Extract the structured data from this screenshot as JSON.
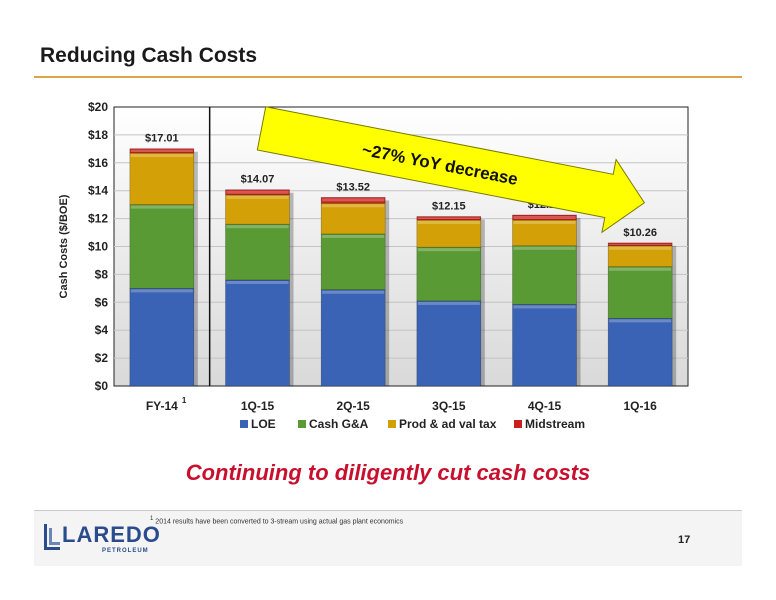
{
  "header": {
    "title": "Reducing Cash Costs"
  },
  "tagline": "Continuing to diligently cut cash costs",
  "footnote": {
    "marker": "1",
    "text": "2014 results have been converted to 3-stream using actual gas plant economics"
  },
  "page_number": "17",
  "logo": {
    "word": "LAREDO",
    "sub": "PETROLEUM"
  },
  "annotation": {
    "text": "~27% YoY decrease",
    "color": "#ffff00"
  },
  "colors": {
    "LOE": "#3a62b5",
    "Cash G&A": "#5a9a35",
    "Prod & ad val tax": "#d4a008",
    "Midstream": "#c8201e",
    "tagline": "#c8102e",
    "accent": "#e0a34a"
  },
  "chart_data": {
    "type": "bar",
    "stacked": true,
    "categories": [
      "FY-14",
      "1Q-15",
      "2Q-15",
      "3Q-15",
      "4Q-15",
      "1Q-16"
    ],
    "category_footnotes": [
      "1",
      "",
      "",
      "",
      "",
      ""
    ],
    "series": [
      {
        "name": "LOE",
        "values": [
          7.0,
          7.6,
          6.9,
          6.1,
          5.85,
          4.85
        ]
      },
      {
        "name": "Cash G&A",
        "values": [
          6.0,
          4.0,
          4.0,
          3.85,
          4.2,
          3.7
        ]
      },
      {
        "name": "Prod & ad val tax",
        "values": [
          3.7,
          2.1,
          2.2,
          1.95,
          1.85,
          1.5
        ]
      },
      {
        "name": "Midstream",
        "values": [
          0.31,
          0.37,
          0.42,
          0.25,
          0.36,
          0.21
        ]
      }
    ],
    "totals": [
      17.01,
      14.07,
      13.52,
      12.15,
      12.26,
      10.26
    ],
    "total_labels": [
      "$17.01",
      "$14.07",
      "$13.52",
      "$12.15",
      "$12.26",
      "$10.26"
    ],
    "ylabel": "Cash Costs ($/BOE)",
    "xlabel": "",
    "ylim": [
      0,
      20
    ],
    "yticks": [
      0,
      2,
      4,
      6,
      8,
      10,
      12,
      14,
      16,
      18,
      20
    ],
    "ytick_labels": [
      "$0",
      "$2",
      "$4",
      "$6",
      "$8",
      "$10",
      "$12",
      "$14",
      "$16",
      "$18",
      "$20"
    ],
    "grid": true,
    "legend": "bottom"
  }
}
